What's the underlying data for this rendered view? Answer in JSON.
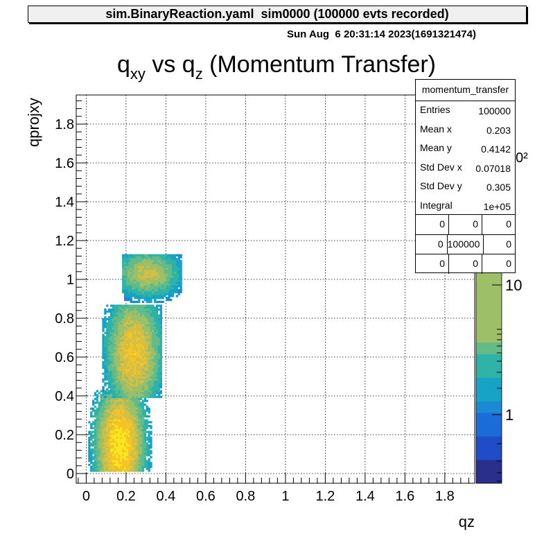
{
  "window_title": "sim.BinaryReaction.yaml  sim0000 (100000 evts recorded)",
  "datestamp": "Sun Aug  6 20:31:14 2023(1691321474)",
  "colors": {
    "palette": [
      "#2b2f8c",
      "#1e4dc7",
      "#1a6cd8",
      "#1b8ad3",
      "#16a3c6",
      "#2fb3a6",
      "#63bb8a",
      "#9dbf67",
      "#d1bf47",
      "#f5c426",
      "#f9e71c"
    ]
  },
  "chart_data": {
    "type": "heatmap",
    "title": {
      "q": "q",
      "sub1": "xy",
      "vs": " vs q",
      "sub2": "z",
      "rest": " (Momentum Transfer)"
    },
    "xlabel": "qz",
    "ylabel": "qprojxy",
    "xlim": [
      -0.05,
      1.95
    ],
    "ylim": [
      -0.05,
      1.95
    ],
    "x_ticks": [
      0,
      0.2,
      0.4,
      0.6,
      0.8,
      1,
      1.2,
      1.4,
      1.6,
      1.8
    ],
    "x_tick_labels": [
      "0",
      "0.2",
      "0.4",
      "0.6",
      "0.8",
      "1",
      "1.2",
      "1.4",
      "1.6",
      "1.8"
    ],
    "y_ticks": [
      0,
      0.2,
      0.4,
      0.6,
      0.8,
      1,
      1.2,
      1.4,
      1.6,
      1.8
    ],
    "y_tick_labels": [
      "0",
      "0.2",
      "0.4",
      "0.6",
      "0.8",
      "1",
      "1.2",
      "1.4",
      "1.6",
      "1.8"
    ],
    "grid": true,
    "z_scale": "log",
    "z_tick_labels": [
      "1",
      "10"
    ],
    "z_exponent_fragment": "0²",
    "clusters": [
      {
        "cx": 0.17,
        "cy": 0.15,
        "sx": 0.09,
        "sy": 0.24,
        "xmin": 0.01,
        "xmax": 0.34,
        "ymin": 0.01,
        "ymax": 0.43,
        "peak": 1.0
      },
      {
        "cx": 0.24,
        "cy": 0.62,
        "sx": 0.1,
        "sy": 0.22,
        "xmin": 0.08,
        "xmax": 0.38,
        "ymin": 0.39,
        "ymax": 0.87,
        "peak": 0.8
      },
      {
        "cx": 0.31,
        "cy": 1.03,
        "sx": 0.12,
        "sy": 0.09,
        "xmin": 0.18,
        "xmax": 0.48,
        "ymin": 0.88,
        "ymax": 1.13,
        "peak": 0.6
      }
    ]
  },
  "stats": {
    "name": "momentum_transfer",
    "rows": [
      {
        "key": "Entries",
        "value": "100000"
      },
      {
        "key": "Mean x",
        "value": "0.203"
      },
      {
        "key": "Mean y",
        "value": "0.4142"
      },
      {
        "key": "Std Dev x",
        "value": "0.07018"
      },
      {
        "key": "Std Dev y",
        "value": "0.305"
      },
      {
        "key": "Integral",
        "value": "1e+05"
      }
    ],
    "quadrants": [
      [
        "0",
        "0",
        "0"
      ],
      [
        "0",
        "100000",
        "0"
      ],
      [
        "0",
        "0",
        "0"
      ]
    ]
  }
}
